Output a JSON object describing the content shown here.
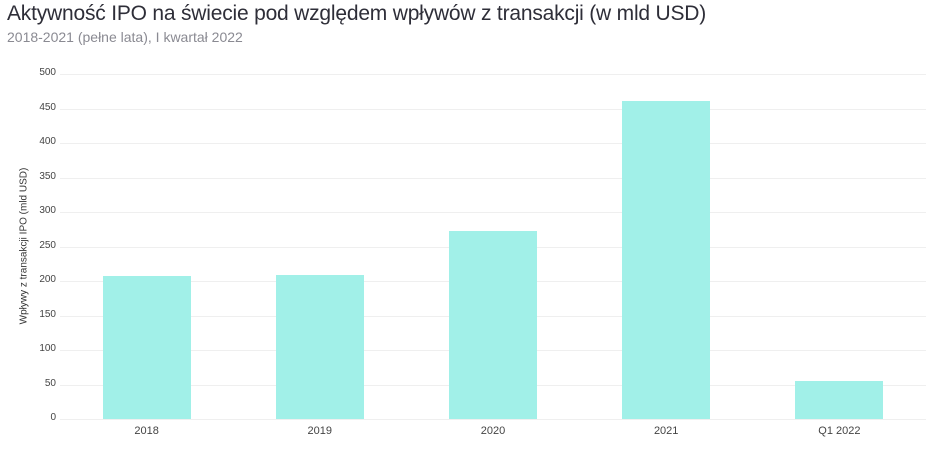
{
  "header": {
    "title": "Aktywność IPO na świecie pod względem wpływów z transakcji (w mld USD)",
    "subtitle": "2018-2021 (pełne lata), I kwartał 2022"
  },
  "colors": {
    "bar": "#a1f0e8",
    "grid": "#efefef",
    "title": "#2e2e38",
    "subtitle": "#8a8a92"
  },
  "chart_data": {
    "type": "bar",
    "title": "Aktywność IPO na świecie pod względem wpływów z transakcji (w mld USD)",
    "subtitle": "2018-2021 (pełne lata), I kwartał 2022",
    "categories": [
      "2018",
      "2019",
      "2020",
      "2021",
      "Q1 2022"
    ],
    "values": [
      207,
      209,
      272,
      461,
      55
    ],
    "xlabel": "",
    "ylabel": "Wpływy z transakcji IPO (mld USD)",
    "ylim": [
      0,
      500
    ],
    "yticks": [
      "0",
      "50",
      "100",
      "150",
      "200",
      "250",
      "300",
      "350",
      "400",
      "450",
      "500"
    ],
    "grid": true,
    "legend": null
  }
}
